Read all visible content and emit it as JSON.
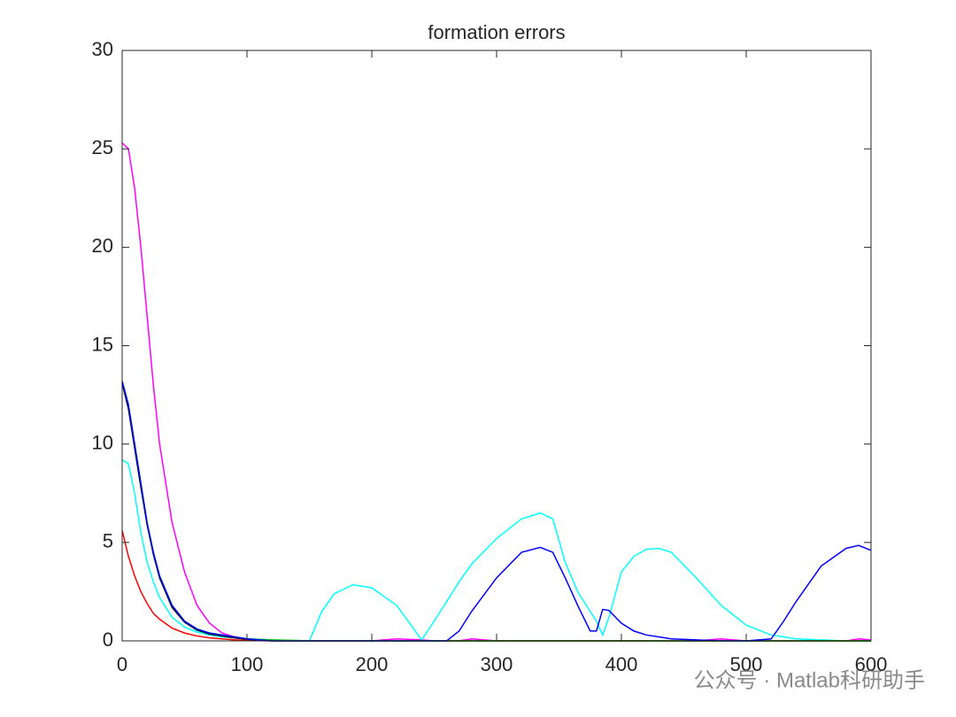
{
  "chart_data": {
    "type": "line",
    "title": "formation errors",
    "x": [
      0,
      5,
      10,
      15,
      20,
      25,
      30,
      40,
      50,
      60,
      70,
      80,
      90,
      100,
      120,
      140,
      150,
      160,
      170,
      185,
      200,
      220,
      240,
      250,
      260,
      270,
      280,
      300,
      320,
      335,
      345,
      355,
      365,
      375,
      380,
      385,
      390,
      400,
      410,
      420,
      430,
      440,
      460,
      480,
      500,
      520,
      530,
      540,
      560,
      580,
      590,
      600
    ],
    "series": [
      {
        "color": "#ff00ff",
        "values": [
          25.3,
          25,
          23,
          20,
          16.5,
          13,
          10,
          6,
          3.5,
          1.8,
          0.9,
          0.4,
          0.2,
          0.1,
          0.05,
          0,
          0,
          0,
          0,
          0,
          0,
          0.1,
          0.05,
          0,
          0,
          0,
          0.1,
          0,
          0,
          0,
          0,
          0,
          0,
          0,
          0,
          0,
          0,
          0,
          0,
          0,
          0,
          0,
          0,
          0.1,
          0,
          0,
          0,
          0,
          0,
          0,
          0.1,
          0.05
        ]
      },
      {
        "color": "#00ffff",
        "values": [
          9.2,
          9,
          7.5,
          5.5,
          4,
          3,
          2.2,
          1.2,
          0.7,
          0.45,
          0.3,
          0.2,
          0.15,
          0.1,
          0.05,
          0,
          0,
          1.5,
          2.4,
          2.85,
          2.7,
          1.8,
          0.05,
          1,
          2,
          3,
          3.9,
          5.2,
          6.2,
          6.5,
          6.2,
          4,
          2.5,
          1.5,
          1,
          0.3,
          1.2,
          3.5,
          4.3,
          4.65,
          4.7,
          4.5,
          3.2,
          1.8,
          0.8,
          0.3,
          0.2,
          0.1,
          0.05,
          0,
          0,
          0
        ]
      },
      {
        "color": "#ff0000",
        "values": [
          5.6,
          4.3,
          3.3,
          2.5,
          1.9,
          1.4,
          1.1,
          0.65,
          0.4,
          0.25,
          0.15,
          0.1,
          0.05,
          0.02,
          0,
          0,
          0,
          0,
          0,
          0,
          0,
          0,
          0,
          0,
          0,
          0,
          0,
          0,
          0,
          0,
          0,
          0,
          0,
          0,
          0,
          0,
          0,
          0,
          0,
          0,
          0,
          0,
          0,
          0,
          0,
          0,
          0,
          0,
          0,
          0,
          0,
          0
        ]
      },
      {
        "color": "#000000",
        "values": [
          13.1,
          11.8,
          9.8,
          7.8,
          5.9,
          4.4,
          3.2,
          1.7,
          0.95,
          0.55,
          0.35,
          0.25,
          0.15,
          0.08,
          0,
          0,
          0,
          0,
          0,
          0,
          0,
          0,
          0,
          0,
          0,
          0,
          0,
          0,
          0,
          0,
          0,
          0,
          0,
          0,
          0,
          0,
          0,
          0,
          0,
          0,
          0,
          0,
          0,
          0,
          0,
          0,
          0,
          0,
          0,
          0,
          0,
          0
        ]
      },
      {
        "color": "#00cc00",
        "values": [
          13.2,
          12,
          10,
          8,
          6,
          4.5,
          3.3,
          1.8,
          1.0,
          0.6,
          0.4,
          0.3,
          0.2,
          0.1,
          0.05,
          0.02,
          0,
          0,
          0,
          0,
          0,
          0,
          0,
          0,
          0,
          0,
          0,
          0,
          0,
          0,
          0,
          0,
          0,
          0,
          0,
          0,
          0,
          0,
          0,
          0,
          0,
          0,
          0,
          0,
          0,
          0,
          0,
          0,
          0,
          0,
          0,
          0
        ]
      },
      {
        "color": "#0000ff",
        "values": [
          13.2,
          12,
          10,
          8,
          6,
          4.5,
          3.3,
          1.8,
          1.0,
          0.6,
          0.4,
          0.3,
          0.2,
          0.1,
          0,
          0,
          0,
          0,
          0,
          0,
          0,
          0,
          0,
          0,
          0,
          0.5,
          1.5,
          3.2,
          4.5,
          4.75,
          4.5,
          3.2,
          1.8,
          0.5,
          0.5,
          1.6,
          1.55,
          0.9,
          0.5,
          0.3,
          0.2,
          0.1,
          0.05,
          0,
          0,
          0.1,
          1,
          2,
          3.8,
          4.7,
          4.85,
          4.6
        ]
      }
    ],
    "xlim": [
      0,
      600
    ],
    "xticks": [
      0,
      100,
      200,
      300,
      400,
      500,
      600
    ],
    "ylim": [
      0,
      30
    ],
    "yticks": [
      0,
      5,
      10,
      15,
      20,
      25,
      30
    ]
  },
  "watermark": "公众号 · Matlab科研助手"
}
